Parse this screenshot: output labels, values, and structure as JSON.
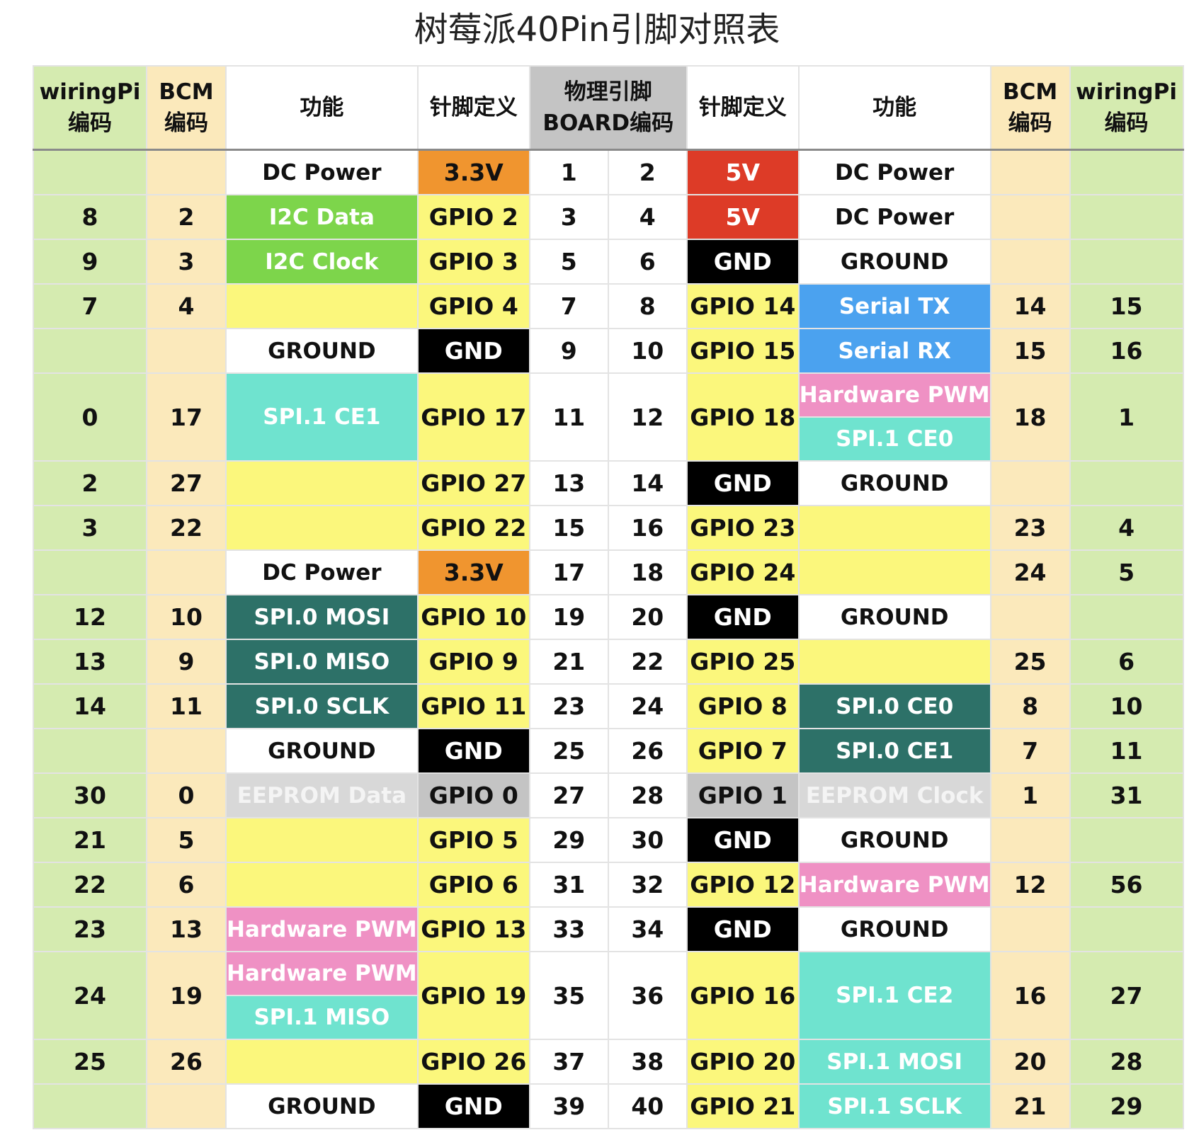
{
  "title": "树莓派40Pin引脚对照表",
  "colors": {
    "wiringpi": "#d5ebb0",
    "bcm": "#fbe9bb",
    "white": "#ffffff",
    "yellow": "#fbf77c",
    "orange": "#f0952f",
    "red": "#dd3b27",
    "black": "#000000",
    "gray": "#c4c4c4",
    "lgray": "#d8d8d8",
    "i2c": "#7dd54b",
    "blue": "#4ba2ef",
    "pink": "#ef91c4",
    "teal": "#6fe3cf",
    "dteal": "#2d7168"
  },
  "header": {
    "wiringpi_l": [
      "wiringPi",
      "编码"
    ],
    "bcm_l": [
      "BCM",
      "编码"
    ],
    "func_l": "功能",
    "def_l": "针脚定义",
    "physical": [
      "物理引脚",
      "BOARD编码"
    ],
    "def_r": "针脚定义",
    "func_r": "功能",
    "bcm_r": [
      "BCM",
      "编码"
    ],
    "wiringpi_r": [
      "wiringPi",
      "编码"
    ]
  },
  "rows": [
    {
      "wl": "",
      "bl": "",
      "fl": [
        {
          "t": "DC Power",
          "c": "white"
        }
      ],
      "dl": {
        "t": "3.3V",
        "c": "orange"
      },
      "pl": "1",
      "pr": "2",
      "dr": {
        "t": "5V",
        "c": "red"
      },
      "fr": [
        {
          "t": "DC Power",
          "c": "white"
        }
      ],
      "br": "",
      "wr": ""
    },
    {
      "wl": "8",
      "bl": "2",
      "fl": [
        {
          "t": "I2C Data",
          "c": "i2c"
        }
      ],
      "dl": {
        "t": "GPIO 2",
        "c": "yellow"
      },
      "pl": "3",
      "pr": "4",
      "dr": {
        "t": "5V",
        "c": "red"
      },
      "fr": [
        {
          "t": "DC Power",
          "c": "white"
        }
      ],
      "br": "",
      "wr": ""
    },
    {
      "wl": "9",
      "bl": "3",
      "fl": [
        {
          "t": "I2C Clock",
          "c": "i2c"
        }
      ],
      "dl": {
        "t": "GPIO 3",
        "c": "yellow"
      },
      "pl": "5",
      "pr": "6",
      "dr": {
        "t": "GND",
        "c": "black"
      },
      "fr": [
        {
          "t": "GROUND",
          "c": "white"
        }
      ],
      "br": "",
      "wr": ""
    },
    {
      "wl": "7",
      "bl": "4",
      "fl": [
        {
          "t": "",
          "c": "yellow"
        }
      ],
      "dl": {
        "t": "GPIO 4",
        "c": "yellow"
      },
      "pl": "7",
      "pr": "8",
      "dr": {
        "t": "GPIO 14",
        "c": "yellow"
      },
      "fr": [
        {
          "t": "Serial TX",
          "c": "blue"
        }
      ],
      "br": "14",
      "wr": "15"
    },
    {
      "wl": "",
      "bl": "",
      "fl": [
        {
          "t": "GROUND",
          "c": "white"
        }
      ],
      "dl": {
        "t": "GND",
        "c": "black"
      },
      "pl": "9",
      "pr": "10",
      "dr": {
        "t": "GPIO 15",
        "c": "yellow"
      },
      "fr": [
        {
          "t": "Serial RX",
          "c": "blue"
        }
      ],
      "br": "15",
      "wr": "16"
    },
    {
      "wl": "0",
      "bl": "17",
      "fl": [
        {
          "t": "SPI.1 CE1",
          "c": "teal"
        }
      ],
      "dl": {
        "t": "GPIO 17",
        "c": "yellow"
      },
      "pl": "11",
      "pr": "12",
      "dr": {
        "t": "GPIO 18",
        "c": "yellow"
      },
      "fr": [
        {
          "t": "Hardware PWM",
          "c": "pink"
        },
        {
          "t": "SPI.1 CE0",
          "c": "teal"
        }
      ],
      "br": "18",
      "wr": "1"
    },
    {
      "wl": "2",
      "bl": "27",
      "fl": [
        {
          "t": "",
          "c": "yellow"
        }
      ],
      "dl": {
        "t": "GPIO 27",
        "c": "yellow"
      },
      "pl": "13",
      "pr": "14",
      "dr": {
        "t": "GND",
        "c": "black"
      },
      "fr": [
        {
          "t": "GROUND",
          "c": "white"
        }
      ],
      "br": "",
      "wr": ""
    },
    {
      "wl": "3",
      "bl": "22",
      "fl": [
        {
          "t": "",
          "c": "yellow"
        }
      ],
      "dl": {
        "t": "GPIO 22",
        "c": "yellow"
      },
      "pl": "15",
      "pr": "16",
      "dr": {
        "t": "GPIO 23",
        "c": "yellow"
      },
      "fr": [
        {
          "t": "",
          "c": "yellow"
        }
      ],
      "br": "23",
      "wr": "4"
    },
    {
      "wl": "",
      "bl": "",
      "fl": [
        {
          "t": "DC Power",
          "c": "white"
        }
      ],
      "dl": {
        "t": "3.3V",
        "c": "orange"
      },
      "pl": "17",
      "pr": "18",
      "dr": {
        "t": "GPIO 24",
        "c": "yellow"
      },
      "fr": [
        {
          "t": "",
          "c": "yellow"
        }
      ],
      "br": "24",
      "wr": "5"
    },
    {
      "wl": "12",
      "bl": "10",
      "fl": [
        {
          "t": "SPI.0 MOSI",
          "c": "dteal"
        }
      ],
      "dl": {
        "t": "GPIO 10",
        "c": "yellow"
      },
      "pl": "19",
      "pr": "20",
      "dr": {
        "t": "GND",
        "c": "black"
      },
      "fr": [
        {
          "t": "GROUND",
          "c": "white"
        }
      ],
      "br": "",
      "wr": ""
    },
    {
      "wl": "13",
      "bl": "9",
      "fl": [
        {
          "t": "SPI.0 MISO",
          "c": "dteal"
        }
      ],
      "dl": {
        "t": "GPIO 9",
        "c": "yellow"
      },
      "pl": "21",
      "pr": "22",
      "dr": {
        "t": "GPIO 25",
        "c": "yellow"
      },
      "fr": [
        {
          "t": "",
          "c": "yellow"
        }
      ],
      "br": "25",
      "wr": "6"
    },
    {
      "wl": "14",
      "bl": "11",
      "fl": [
        {
          "t": "SPI.0 SCLK",
          "c": "dteal"
        }
      ],
      "dl": {
        "t": "GPIO 11",
        "c": "yellow"
      },
      "pl": "23",
      "pr": "24",
      "dr": {
        "t": "GPIO 8",
        "c": "yellow"
      },
      "fr": [
        {
          "t": "SPI.0 CE0",
          "c": "dteal"
        }
      ],
      "br": "8",
      "wr": "10"
    },
    {
      "wl": "",
      "bl": "",
      "fl": [
        {
          "t": "GROUND",
          "c": "white"
        }
      ],
      "dl": {
        "t": "GND",
        "c": "black"
      },
      "pl": "25",
      "pr": "26",
      "dr": {
        "t": "GPIO 7",
        "c": "yellow"
      },
      "fr": [
        {
          "t": "SPI.0 CE1",
          "c": "dteal"
        }
      ],
      "br": "7",
      "wr": "11"
    },
    {
      "wl": "30",
      "bl": "0",
      "fl": [
        {
          "t": "EEPROM Data",
          "c": "lgray"
        }
      ],
      "dl": {
        "t": "GPIO 0",
        "c": "gray"
      },
      "pl": "27",
      "pr": "28",
      "dr": {
        "t": "GPIO 1",
        "c": "gray"
      },
      "fr": [
        {
          "t": "EEPROM Clock",
          "c": "lgray"
        }
      ],
      "br": "1",
      "wr": "31"
    },
    {
      "wl": "21",
      "bl": "5",
      "fl": [
        {
          "t": "",
          "c": "yellow"
        }
      ],
      "dl": {
        "t": "GPIO 5",
        "c": "yellow"
      },
      "pl": "29",
      "pr": "30",
      "dr": {
        "t": "GND",
        "c": "black"
      },
      "fr": [
        {
          "t": "GROUND",
          "c": "white"
        }
      ],
      "br": "",
      "wr": ""
    },
    {
      "wl": "22",
      "bl": "6",
      "fl": [
        {
          "t": "",
          "c": "yellow"
        }
      ],
      "dl": {
        "t": "GPIO 6",
        "c": "yellow"
      },
      "pl": "31",
      "pr": "32",
      "dr": {
        "t": "GPIO 12",
        "c": "yellow"
      },
      "fr": [
        {
          "t": "Hardware PWM",
          "c": "pink"
        }
      ],
      "br": "12",
      "wr": "56"
    },
    {
      "wl": "23",
      "bl": "13",
      "fl": [
        {
          "t": "Hardware PWM",
          "c": "pink"
        }
      ],
      "dl": {
        "t": "GPIO 13",
        "c": "yellow"
      },
      "pl": "33",
      "pr": "34",
      "dr": {
        "t": "GND",
        "c": "black"
      },
      "fr": [
        {
          "t": "GROUND",
          "c": "white"
        }
      ],
      "br": "",
      "wr": ""
    },
    {
      "wl": "24",
      "bl": "19",
      "fl": [
        {
          "t": "Hardware PWM",
          "c": "pink"
        },
        {
          "t": "SPI.1 MISO",
          "c": "teal"
        }
      ],
      "dl": {
        "t": "GPIO 19",
        "c": "yellow"
      },
      "pl": "35",
      "pr": "36",
      "dr": {
        "t": "GPIO 16",
        "c": "yellow"
      },
      "fr": [
        {
          "t": "SPI.1 CE2",
          "c": "teal"
        }
      ],
      "br": "16",
      "wr": "27"
    },
    {
      "wl": "25",
      "bl": "26",
      "fl": [
        {
          "t": "",
          "c": "yellow"
        }
      ],
      "dl": {
        "t": "GPIO 26",
        "c": "yellow"
      },
      "pl": "37",
      "pr": "38",
      "dr": {
        "t": "GPIO 20",
        "c": "yellow"
      },
      "fr": [
        {
          "t": "SPI.1 MOSI",
          "c": "teal"
        }
      ],
      "br": "20",
      "wr": "28"
    },
    {
      "wl": "",
      "bl": "",
      "fl": [
        {
          "t": "GROUND",
          "c": "white"
        }
      ],
      "dl": {
        "t": "GND",
        "c": "black"
      },
      "pl": "39",
      "pr": "40",
      "dr": {
        "t": "GPIO 21",
        "c": "yellow"
      },
      "fr": [
        {
          "t": "SPI.1 SCLK",
          "c": "teal"
        }
      ],
      "br": "21",
      "wr": "29"
    }
  ]
}
